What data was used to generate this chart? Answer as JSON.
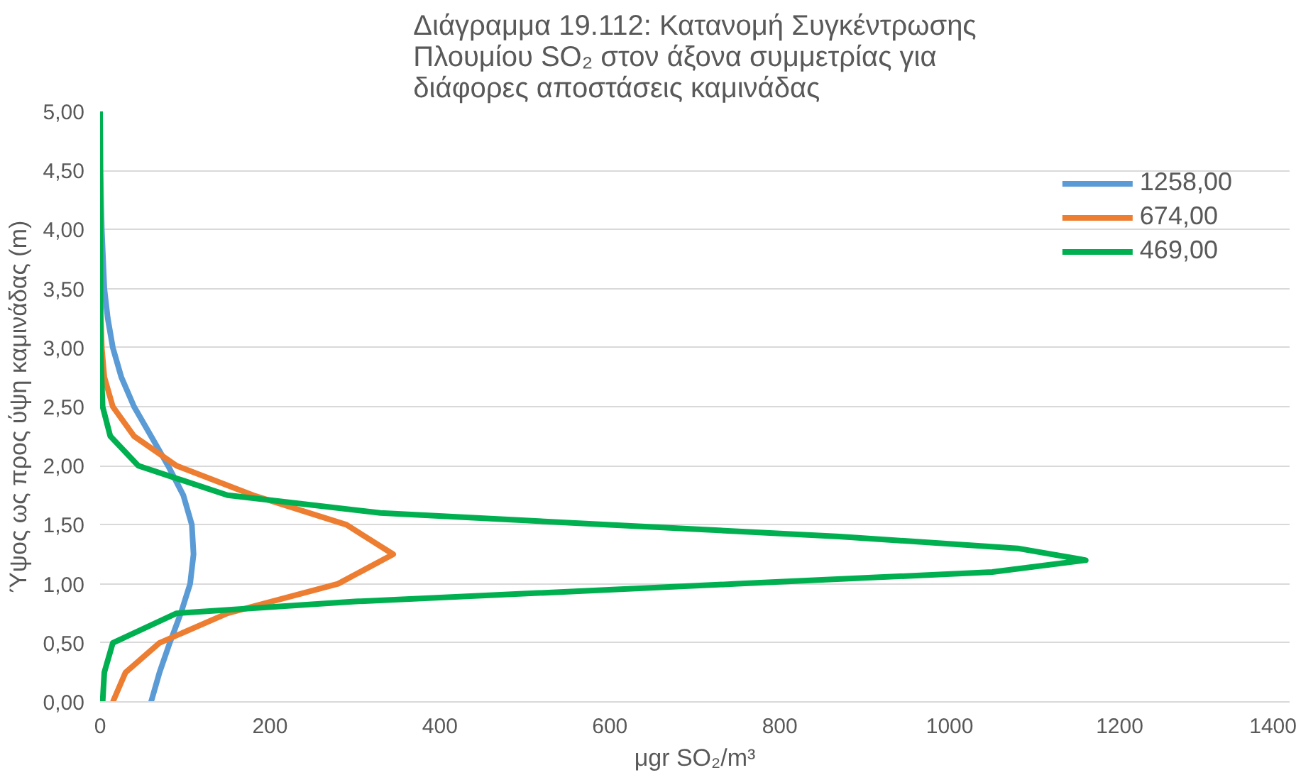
{
  "chart_data": {
    "type": "line",
    "title": "Διάγραμμα 19.112: Κατανομή Συγκέντρωσης Πλουμίου SO₂ στον άξονα συμμετρίας για διάφορες αποστάσεις καμινάδας",
    "xlabel": "μgr SO₂/m³",
    "ylabel": "Ύψος ως προς ύψη καμινάδας (m)",
    "series": [
      {
        "name": "1258,00",
        "color": "#5b9bd5",
        "x": [
          60,
          70,
          82,
          95,
          106,
          110,
          108,
          98,
          80,
          60,
          40,
          25,
          15,
          9,
          5,
          2,
          0.5,
          0
        ],
        "values": [
          0,
          0.25,
          0.5,
          0.75,
          1.0,
          1.25,
          1.5,
          1.75,
          2.0,
          2.25,
          2.5,
          2.75,
          3.0,
          3.25,
          3.5,
          4.0,
          4.5,
          5.0
        ]
      },
      {
        "name": "674,00",
        "color": "#ed7d31",
        "x": [
          15,
          30,
          70,
          150,
          280,
          345,
          290,
          180,
          90,
          40,
          15,
          5,
          2,
          0
        ],
        "values": [
          0,
          0.25,
          0.5,
          0.75,
          1.0,
          1.25,
          1.5,
          1.75,
          2.0,
          2.25,
          2.5,
          2.75,
          3.0,
          3.5
        ]
      },
      {
        "name": "469,00",
        "color": "#00b050",
        "x": [
          3,
          5,
          15,
          90,
          300,
          750,
          1050,
          1160,
          1080,
          870,
          600,
          330,
          150,
          45,
          12,
          3,
          0.5,
          0
        ],
        "values": [
          0,
          0.25,
          0.5,
          0.75,
          0.85,
          1.0,
          1.1,
          1.2,
          1.3,
          1.4,
          1.5,
          1.6,
          1.75,
          2.0,
          2.25,
          2.5,
          3.0,
          5.0
        ]
      }
    ],
    "xlim": [
      0,
      1400
    ],
    "xticks": [
      0,
      200,
      400,
      600,
      800,
      1000,
      1200,
      1400
    ],
    "ylim": [
      0,
      5
    ],
    "yticks": [
      {
        "value": 0,
        "label": "0,00"
      },
      {
        "value": 0.5,
        "label": "0,50"
      },
      {
        "value": 1,
        "label": "1,00"
      },
      {
        "value": 1.5,
        "label": "1,50"
      },
      {
        "value": 2,
        "label": "2,00"
      },
      {
        "value": 2.5,
        "label": "2,50"
      },
      {
        "value": 3,
        "label": "3,00"
      },
      {
        "value": 3.5,
        "label": "3,50"
      },
      {
        "value": 4,
        "label": "4,00"
      },
      {
        "value": 4.5,
        "label": "4,50"
      },
      {
        "value": 5,
        "label": "5,00"
      }
    ],
    "grid": "y",
    "legend": "top right",
    "line_style": "solid"
  }
}
